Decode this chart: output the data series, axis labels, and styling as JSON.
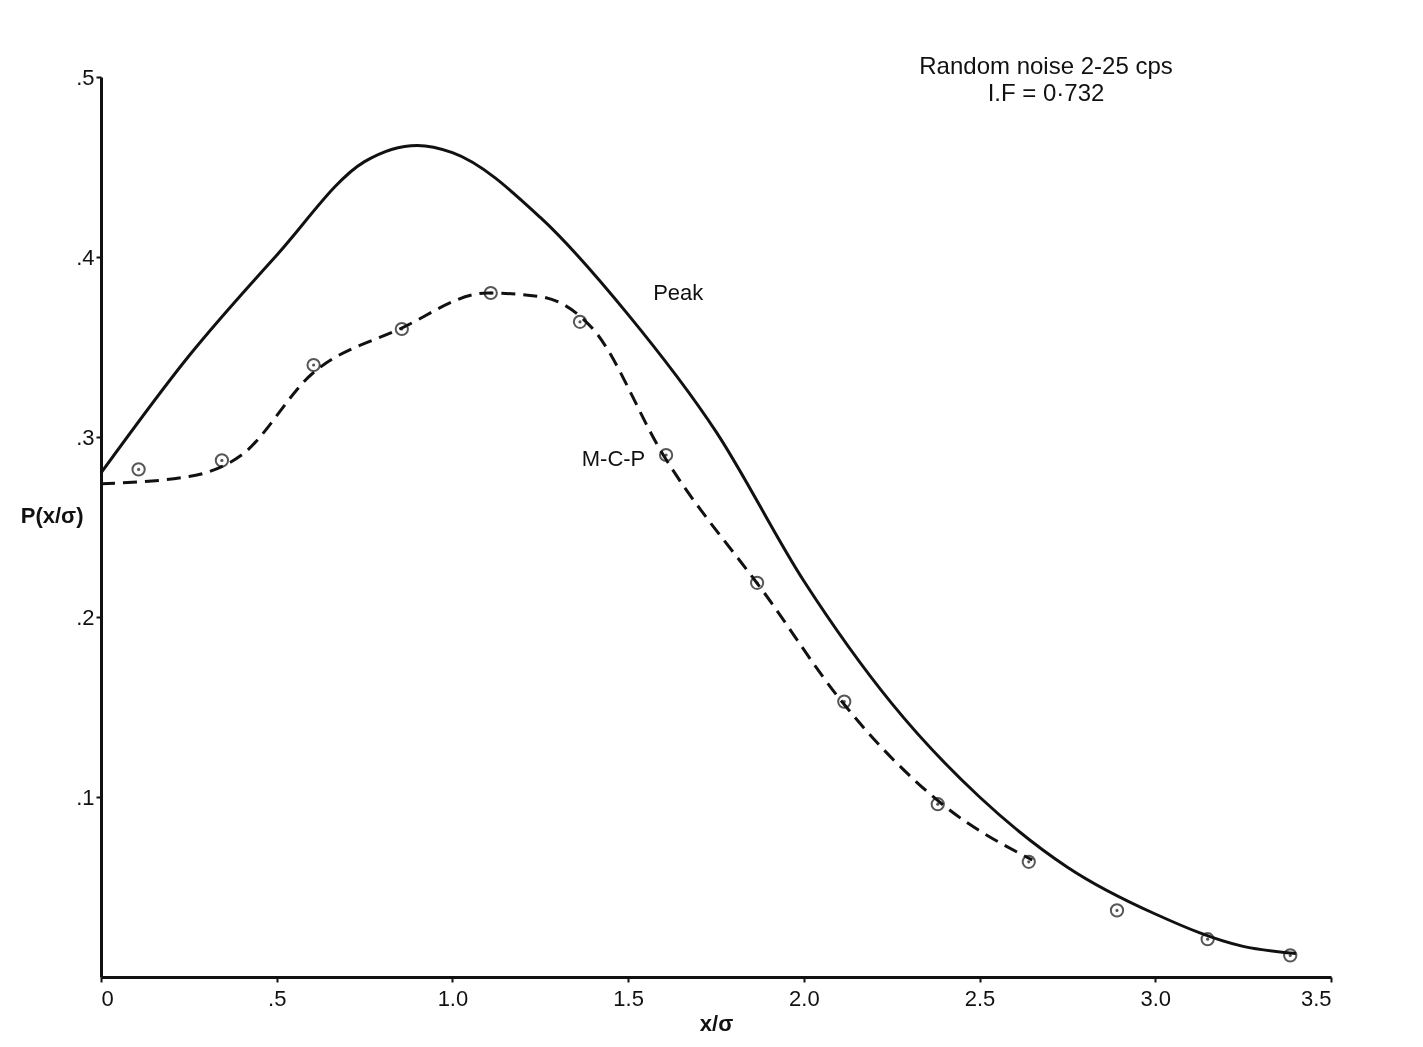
{
  "chart_data": {
    "type": "line",
    "title": "Random noise 2-25 cps",
    "subtitle": "I.F = 0·732",
    "xlabel": "x/σ",
    "ylabel": "P(x/σ)",
    "xlim": [
      0,
      3.5
    ],
    "ylim": [
      0,
      0.5
    ],
    "xticks": [
      0,
      {
        "value": 0.5,
        "label": ".5"
      },
      {
        "value": 1,
        "label": "1.0"
      },
      {
        "value": 1.5,
        "label": "1.5"
      },
      {
        "value": 2,
        "label": "2.0"
      },
      {
        "value": 2.5,
        "label": "2.5"
      },
      {
        "value": 3,
        "label": "3.0"
      },
      {
        "value": 3.5,
        "label": "3.5"
      }
    ],
    "yticks": [
      {
        "value": 0.1,
        "label": ".1"
      },
      {
        "value": 0.2,
        "label": ".2"
      },
      {
        "value": 0.3,
        "label": ".3"
      },
      {
        "value": 0.4,
        "label": ".4"
      },
      {
        "value": 0.5,
        "label": ".5"
      }
    ],
    "grid": false,
    "legend": false,
    "series": [
      {
        "name": "Peak",
        "color": "#111111",
        "line_style": "solid",
        "marker": "none",
        "x": [
          0,
          0.25,
          0.5,
          0.75,
          0.9,
          1.0,
          1.25,
          1.5,
          1.75,
          2.0,
          2.25,
          2.5,
          2.75,
          3.0,
          3.25,
          3.4
        ],
        "values": [
          0.28,
          0.345,
          0.401,
          0.453,
          0.462,
          0.458,
          0.422,
          0.368,
          0.303,
          0.22,
          0.152,
          0.1,
          0.061,
          0.035,
          0.017,
          0.013
        ]
      },
      {
        "name": "M-C-P",
        "color": "#111111",
        "line_style": "dashed",
        "marker": "none",
        "x": [
          0,
          0.25,
          0.4,
          0.6,
          0.85,
          1.1,
          1.25,
          1.4,
          1.6,
          1.9,
          2.1,
          2.4,
          2.65
        ],
        "values": [
          0.274,
          0.278,
          0.29,
          0.335,
          0.36,
          0.38,
          0.378,
          0.36,
          0.29,
          0.21,
          0.155,
          0.095,
          0.065
        ]
      },
      {
        "type": "scatter",
        "color": "#111111",
        "marker": "circle",
        "x": [
          0.107,
          0.344,
          0.605,
          0.856,
          1.109,
          1.363,
          1.608,
          1.867,
          2.115,
          2.381,
          2.64,
          2.891,
          3.149,
          3.384
        ],
        "values": [
          0.282,
          0.287,
          0.34,
          0.36,
          0.38,
          0.364,
          0.29,
          0.219,
          0.153,
          0.096,
          0.064,
          0.037,
          0.021,
          0.012
        ]
      }
    ]
  }
}
